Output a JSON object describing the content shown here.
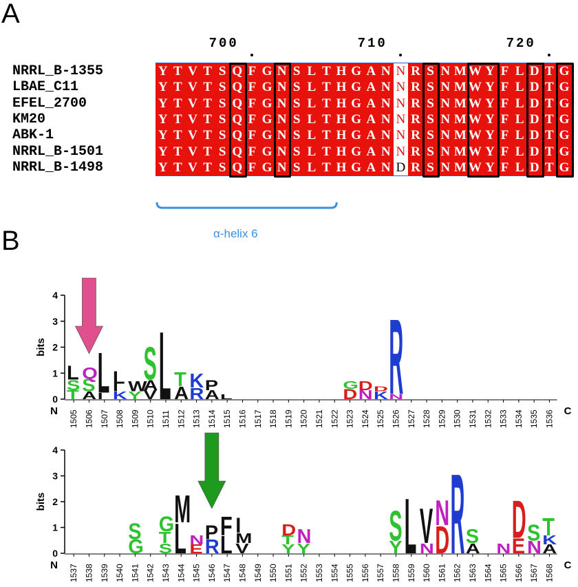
{
  "panels": {
    "a": "A",
    "b": "B"
  },
  "alignment": {
    "ruler": [
      {
        "label": "700",
        "col": 6
      },
      {
        "label": "710",
        "col": 16
      },
      {
        "label": "720",
        "col": 26
      }
    ],
    "sequences": [
      {
        "name": "NRRL_B-1355",
        "seq": "YTVTSQFGNSLTHGANNRSNMWYFLDTG"
      },
      {
        "name": "LBAE_C11",
        "seq": "YTVTSQFGNSLTHGANNRSNMWYFLDTG"
      },
      {
        "name": "EFEL_2700",
        "seq": "YTVTSQFGNSLTHGANNRSNMWYFLDTG"
      },
      {
        "name": "KM20",
        "seq": "YTVTSQFGNSLTHGANNRSNMWYFLDTG"
      },
      {
        "name": "ABK-1",
        "seq": "YTVTSQFGNSLTHGANNRSNMWYFLDTG"
      },
      {
        "name": "NRRL_B-1501",
        "seq": "YTVTSQFGNSLTHGANNRSNMWYFLDTG"
      },
      {
        "name": "NRRL_B-1498",
        "seq": "YTVTSQFGNSLTHGANDRSNMWYFLDTG"
      }
    ],
    "variable_column": 16,
    "boxed_columns": [
      5,
      8,
      18,
      21,
      22,
      25,
      27
    ],
    "helix_label": "α-helix 6",
    "colors": {
      "conserved_bg": "#e8120c",
      "conserved_text": "#ffffff",
      "variable_text": "#e8120c",
      "box": "#000000",
      "helix": "#3a8fe0"
    }
  },
  "logos": [
    {
      "positions": [
        "1505",
        "1506",
        "1507",
        "1508",
        "1509",
        "1510",
        "1511",
        "1512",
        "1513",
        "1514",
        "1515",
        "1516",
        "1517",
        "1518",
        "1519",
        "1520",
        "1521",
        "1522",
        "1523",
        "1524",
        "1525",
        "1526",
        "1527",
        "1528",
        "1529",
        "1530",
        "1531",
        "1532",
        "1533",
        "1534",
        "1535",
        "1536"
      ],
      "ylabel": "bits",
      "yticks": [
        "0",
        "1",
        "2",
        "3",
        "4"
      ],
      "n_label": "N",
      "c_label": "C",
      "arrow_position": "1506",
      "arrow_color": "#e0508e",
      "stacks": [
        {
          "pos": 0,
          "letters": [
            [
              "T",
              0.35
            ],
            [
              "S",
              0.4
            ],
            [
              "L",
              0.55
            ]
          ]
        },
        {
          "pos": 1,
          "letters": [
            [
              "A",
              0.3
            ],
            [
              "S",
              0.5
            ],
            [
              "Q",
              0.45
            ]
          ]
        },
        {
          "pos": 2,
          "letters": [
            [
              "I",
              0.25
            ],
            [
              "L",
              1.6
            ]
          ]
        },
        {
          "pos": 3,
          "letters": [
            [
              "K",
              0.3
            ],
            [
              "I",
              0.3
            ],
            [
              "L",
              0.5
            ]
          ]
        },
        {
          "pos": 4,
          "letters": [
            [
              "Y",
              0.3
            ],
            [
              "W",
              0.4
            ]
          ]
        },
        {
          "pos": 5,
          "letters": [
            [
              "V",
              0.35
            ],
            [
              "A",
              0.4
            ],
            [
              "S",
              1.3
            ]
          ]
        },
        {
          "pos": 6,
          "letters": [
            [
              "L",
              2.7
            ]
          ]
        },
        {
          "pos": 7,
          "letters": [
            [
              "A",
              0.5
            ],
            [
              "T",
              0.55
            ]
          ]
        },
        {
          "pos": 8,
          "letters": [
            [
              "R",
              0.45
            ],
            [
              "K",
              0.55
            ]
          ]
        },
        {
          "pos": 9,
          "letters": [
            [
              "A",
              0.35
            ],
            [
              "P",
              0.4
            ]
          ]
        },
        {
          "pos": 10,
          "letters": [
            [
              "L",
              0.2
            ]
          ]
        },
        {
          "pos": 18,
          "letters": [
            [
              "D",
              0.4
            ],
            [
              "G",
              0.3
            ]
          ]
        },
        {
          "pos": 19,
          "letters": [
            [
              "N",
              0.35
            ],
            [
              "D",
              0.35
            ]
          ]
        },
        {
          "pos": 20,
          "letters": [
            [
              "K",
              0.3
            ],
            [
              "D",
              0.2
            ]
          ]
        },
        {
          "pos": 21,
          "letters": [
            [
              "N",
              0.2
            ],
            [
              "R",
              3.0
            ]
          ]
        }
      ]
    },
    {
      "positions": [
        "1537",
        "1538",
        "1539",
        "1540",
        "1541",
        "1542",
        "1543",
        "1544",
        "1545",
        "1546",
        "1547",
        "1548",
        "1549",
        "1550",
        "1551",
        "1552",
        "1553",
        "1554",
        "1555",
        "1556",
        "1557",
        "1558",
        "1559",
        "1560",
        "1561",
        "1562",
        "1563",
        "1564",
        "1565",
        "1566",
        "1567",
        "1568"
      ],
      "ylabel": "bits",
      "yticks": [
        "0",
        "1",
        "2",
        "3",
        "4"
      ],
      "n_label": "N",
      "c_label": "C",
      "arrow_position": "1546",
      "arrow_color": "#1e9b1e",
      "stacks": [
        {
          "pos": 4,
          "letters": [
            [
              "G",
              0.55
            ],
            [
              "S",
              0.65
            ]
          ]
        },
        {
          "pos": 6,
          "letters": [
            [
              "S",
              0.4
            ],
            [
              "T",
              0.45
            ],
            [
              "G",
              0.6
            ]
          ]
        },
        {
          "pos": 7,
          "letters": [
            [
              "L",
              1.2
            ],
            [
              "M",
              1.1
            ]
          ]
        },
        {
          "pos": 8,
          "letters": [
            [
              "E",
              0.35
            ],
            [
              "N",
              0.35
            ]
          ]
        },
        {
          "pos": 9,
          "letters": [
            [
              "R",
              0.55
            ],
            [
              "P",
              0.55
            ]
          ]
        },
        {
          "pos": 10,
          "letters": [
            [
              "L",
              0.7
            ],
            [
              "F",
              0.75
            ]
          ]
        },
        {
          "pos": 11,
          "letters": [
            [
              "V",
              0.4
            ],
            [
              "M",
              0.4
            ],
            [
              "I",
              0.6
            ]
          ]
        },
        {
          "pos": 14,
          "letters": [
            [
              "Y",
              0.35
            ],
            [
              "T",
              0.35
            ],
            [
              "D",
              0.45
            ]
          ]
        },
        {
          "pos": 15,
          "letters": [
            [
              "Y",
              0.4
            ],
            [
              "N",
              0.55
            ]
          ]
        },
        {
          "pos": 21,
          "letters": [
            [
              "Y",
              0.5
            ],
            [
              "S",
              1.2
            ]
          ]
        },
        {
          "pos": 22,
          "letters": [
            [
              "L",
              2.2
            ]
          ]
        },
        {
          "pos": 23,
          "letters": [
            [
              "N",
              0.4
            ],
            [
              "V",
              1.4
            ]
          ]
        },
        {
          "pos": 24,
          "letters": [
            [
              "D",
              1.1
            ],
            [
              "N",
              1.0
            ]
          ]
        },
        {
          "pos": 25,
          "letters": [
            [
              "R",
              3.2
            ]
          ]
        },
        {
          "pos": 26,
          "letters": [
            [
              "A",
              0.4
            ],
            [
              "S",
              0.55
            ]
          ]
        },
        {
          "pos": 28,
          "letters": [
            [
              "N",
              0.4
            ]
          ]
        },
        {
          "pos": 29,
          "letters": [
            [
              "E",
              0.6
            ],
            [
              "D",
              1.5
            ]
          ]
        },
        {
          "pos": 30,
          "letters": [
            [
              "N",
              0.5
            ],
            [
              "S",
              0.65
            ]
          ]
        },
        {
          "pos": 31,
          "letters": [
            [
              "A",
              0.35
            ],
            [
              "K",
              0.35
            ],
            [
              "T",
              0.7
            ]
          ]
        }
      ]
    }
  ]
}
